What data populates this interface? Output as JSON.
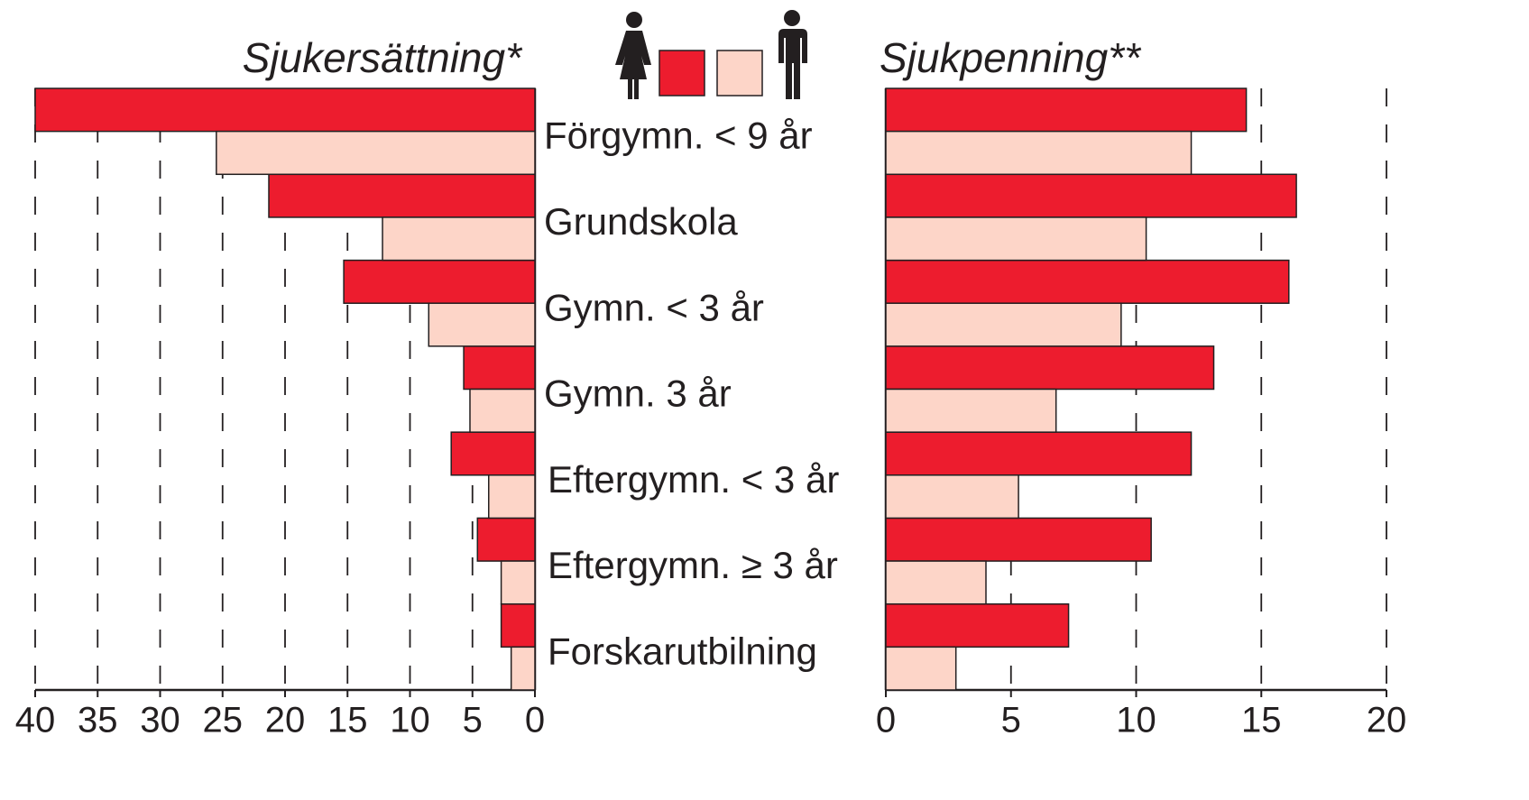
{
  "chart_data": [
    {
      "type": "bar",
      "orientation": "horizontal",
      "title": "Sjukersättning*",
      "categories": [
        "Förgymn. < 9 år",
        "Grundskola",
        "Gymn. < 3 år",
        "Gymn. 3 år",
        "Eftergymn. < 3 år",
        "Eftergymn. ≥ 3 år",
        "Forskarutbilning"
      ],
      "series": [
        {
          "color": "#ed1c2e",
          "values": [
            40,
            21.3,
            15.3,
            5.7,
            6.7,
            4.6,
            2.7
          ]
        },
        {
          "color": "#fdd5c8",
          "values": [
            25.5,
            12.2,
            8.5,
            5.2,
            3.7,
            2.7,
            1.9
          ]
        }
      ],
      "xlim": [
        40,
        0
      ],
      "xticks": [
        40,
        35,
        30,
        25,
        20,
        15,
        10,
        5,
        0
      ],
      "grid": true
    },
    {
      "type": "bar",
      "orientation": "horizontal",
      "title": "Sjukpenning**",
      "series": [
        {
          "color": "#ed1c2e",
          "values": [
            14.4,
            16.4,
            16.1,
            13.1,
            12.2,
            10.6,
            7.3
          ]
        },
        {
          "color": "#fdd5c8",
          "values": [
            12.2,
            10.4,
            9.4,
            6.8,
            5.3,
            4.0,
            2.8
          ]
        }
      ],
      "xlim": [
        0,
        20
      ],
      "xticks": [
        0,
        5,
        10,
        15,
        20
      ],
      "grid": true
    }
  ]
}
